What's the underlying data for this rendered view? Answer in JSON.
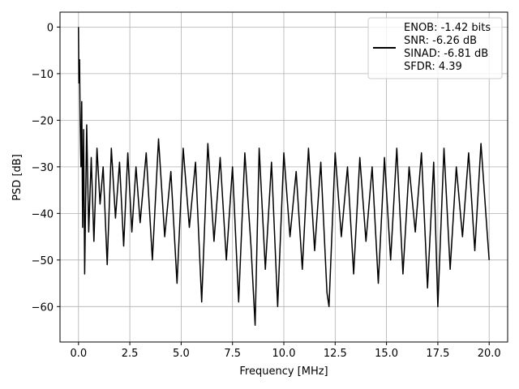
{
  "chart_data": {
    "type": "line",
    "xlabel": "Frequency [MHz]",
    "ylabel": "PSD [dB]",
    "xlim": [
      -0.9,
      20.9
    ],
    "ylim": [
      -67.6,
      3.2
    ],
    "xticks": [
      0.0,
      2.5,
      5.0,
      7.5,
      10.0,
      12.5,
      15.0,
      17.5,
      20.0
    ],
    "xtick_labels": [
      "0.0",
      "2.5",
      "5.0",
      "7.5",
      "10.0",
      "12.5",
      "15.0",
      "17.5",
      "20.0"
    ],
    "yticks": [
      0,
      -10,
      -20,
      -30,
      -40,
      -50,
      -60
    ],
    "ytick_labels": [
      "0",
      "−10",
      "−20",
      "−30",
      "−40",
      "−50",
      "−60"
    ],
    "grid": true,
    "legend_position": "top-right",
    "series": [
      {
        "legend_lines": [
          "ENOB: -1.42 bits",
          "SNR: -6.26 dB",
          "SINAD: -6.81 dB",
          "SFDR: 4.39"
        ],
        "color": "#000000",
        "x": [
          0.0,
          0.02,
          0.05,
          0.08,
          0.12,
          0.16,
          0.2,
          0.25,
          0.3,
          0.4,
          0.5,
          0.62,
          0.75,
          0.9,
          1.05,
          1.2,
          1.4,
          1.6,
          1.8,
          2.0,
          2.2,
          2.4,
          2.6,
          2.8,
          3.0,
          3.3,
          3.6,
          3.9,
          4.2,
          4.5,
          4.8,
          5.1,
          5.4,
          5.7,
          6.0,
          6.3,
          6.6,
          6.9,
          7.2,
          7.5,
          7.8,
          8.1,
          8.4,
          8.6,
          8.8,
          9.1,
          9.4,
          9.7,
          10.0,
          10.3,
          10.6,
          10.9,
          11.2,
          11.5,
          11.8,
          12.1,
          12.2,
          12.5,
          12.8,
          13.1,
          13.4,
          13.7,
          14.0,
          14.3,
          14.6,
          14.9,
          15.2,
          15.5,
          15.8,
          16.1,
          16.4,
          16.7,
          17.0,
          17.3,
          17.5,
          17.8,
          18.1,
          18.4,
          18.7,
          19.0,
          19.3,
          19.6,
          19.9,
          20.0
        ],
        "y": [
          0,
          -12,
          -7,
          -20,
          -30,
          -16,
          -43,
          -22,
          -53,
          -21,
          -44,
          -28,
          -46,
          -26,
          -38,
          -30,
          -51,
          -26,
          -41,
          -29,
          -47,
          -27,
          -44,
          -30,
          -42,
          -27,
          -50,
          -24,
          -45,
          -31,
          -55,
          -26,
          -43,
          -29,
          -59,
          -25,
          -46,
          -28,
          -50,
          -30,
          -59,
          -27,
          -47,
          -64,
          -26,
          -52,
          -29,
          -60,
          -27,
          -45,
          -31,
          -52,
          -26,
          -48,
          -29,
          -57,
          -60,
          -27,
          -45,
          -30,
          -53,
          -28,
          -46,
          -30,
          -55,
          -28,
          -50,
          -26,
          -53,
          -30,
          -44,
          -27,
          -56,
          -29,
          -60,
          -26,
          -52,
          -30,
          -45,
          -27,
          -48,
          -25,
          -44,
          -50
        ]
      }
    ]
  }
}
